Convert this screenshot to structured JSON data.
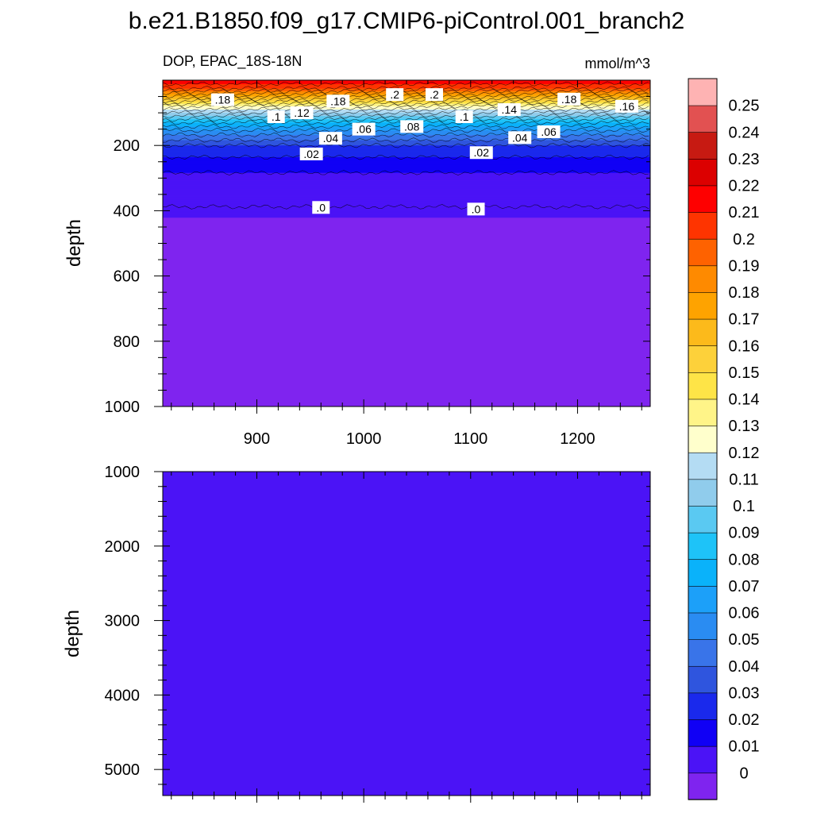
{
  "figure": {
    "title": "b.e21.B1850.f09_g17.CMIP6-piControl.001_branch2",
    "left_string": "DOP, EPAC_18S-18N",
    "right_string": "mmol/m^3"
  },
  "colormap": {
    "levels": [
      0,
      0.01,
      0.02,
      0.03,
      0.04,
      0.05,
      0.06,
      0.07,
      0.08,
      0.09,
      0.1,
      0.11,
      0.12,
      0.13,
      0.14,
      0.15,
      0.16,
      0.17,
      0.18,
      0.19,
      0.2,
      0.21,
      0.22,
      0.23,
      0.24,
      0.25
    ],
    "level_labels": [
      "0",
      "0.01",
      "0.02",
      "0.03",
      "0.04",
      "0.05",
      "0.06",
      "0.07",
      "0.08",
      "0.09",
      "0.1",
      "0.11",
      "0.12",
      "0.13",
      "0.14",
      "0.15",
      "0.16",
      "0.17",
      "0.18",
      "0.19",
      "0.2",
      "0.21",
      "0.22",
      "0.23",
      "0.24",
      "0.25"
    ],
    "colors": [
      "#7f24ef",
      "#4b13f6",
      "#1000f5",
      "#1a29ec",
      "#2f55de",
      "#3974e9",
      "#2a8cf2",
      "#1ca0f9",
      "#0ab2fa",
      "#1ec3f8",
      "#5ac9f2",
      "#90ccec",
      "#b4dcf3",
      "#ffffcc",
      "#fff488",
      "#fee447",
      "#fdd13a",
      "#fcba1b",
      "#fea300",
      "#fe8a00",
      "#fe6200",
      "#fe3400",
      "#fe0000",
      "#dc0000",
      "#c71a12",
      "#e25151",
      "#feb3b3"
    ]
  },
  "chart_data": [
    {
      "type": "heatmap",
      "panel": "upper",
      "xlabel": "",
      "ylabel": "depth",
      "x_range": [
        812,
        1268
      ],
      "y_range": [
        0,
        1000
      ],
      "y_inverted": true,
      "xticks": [
        900,
        1000,
        1100,
        1200
      ],
      "yticks": [
        200,
        400,
        600,
        800,
        1000
      ],
      "depth_profile": [
        {
          "depth": 5,
          "value": 0.215
        },
        {
          "depth": 25,
          "value": 0.2
        },
        {
          "depth": 50,
          "value": 0.17
        },
        {
          "depth": 80,
          "value": 0.13
        },
        {
          "depth": 100,
          "value": 0.11
        },
        {
          "depth": 130,
          "value": 0.08
        },
        {
          "depth": 160,
          "value": 0.055
        },
        {
          "depth": 200,
          "value": 0.03
        },
        {
          "depth": 265,
          "value": 0.012
        },
        {
          "depth": 330,
          "value": 0.005
        },
        {
          "depth": 390,
          "value": 0.0
        },
        {
          "depth": 1000,
          "value": 0.0
        }
      ],
      "contour_labels": [
        {
          "text": ".18",
          "x": 868,
          "depth": 60
        },
        {
          "text": ".1",
          "x": 918,
          "depth": 112
        },
        {
          "text": ".12",
          "x": 942,
          "depth": 100
        },
        {
          "text": ".18",
          "x": 976,
          "depth": 64
        },
        {
          "text": ".2",
          "x": 1029,
          "depth": 44
        },
        {
          "text": ".2",
          "x": 1066,
          "depth": 44
        },
        {
          "text": ".1",
          "x": 1094,
          "depth": 112
        },
        {
          "text": ".14",
          "x": 1136,
          "depth": 90
        },
        {
          "text": ".18",
          "x": 1192,
          "depth": 58
        },
        {
          "text": ".16",
          "x": 1246,
          "depth": 80
        },
        {
          "text": ".06",
          "x": 1000,
          "depth": 150
        },
        {
          "text": ".08",
          "x": 1045,
          "depth": 142
        },
        {
          "text": ".04",
          "x": 969,
          "depth": 178
        },
        {
          "text": ".06",
          "x": 1173,
          "depth": 158
        },
        {
          "text": ".04",
          "x": 1146,
          "depth": 176
        },
        {
          "text": ".02",
          "x": 951,
          "depth": 226
        },
        {
          "text": ".02",
          "x": 1110,
          "depth": 222
        },
        {
          "text": ".0",
          "x": 960,
          "depth": 390
        },
        {
          "text": ".0",
          "x": 1105,
          "depth": 395
        }
      ]
    },
    {
      "type": "heatmap",
      "panel": "lower",
      "xlabel": "",
      "ylabel": "depth",
      "x_range": [
        812,
        1268
      ],
      "y_range": [
        1000,
        5350
      ],
      "y_inverted": true,
      "yticks": [
        1000,
        2000,
        3000,
        4000,
        5000
      ],
      "uniform_value": 0.0
    }
  ]
}
